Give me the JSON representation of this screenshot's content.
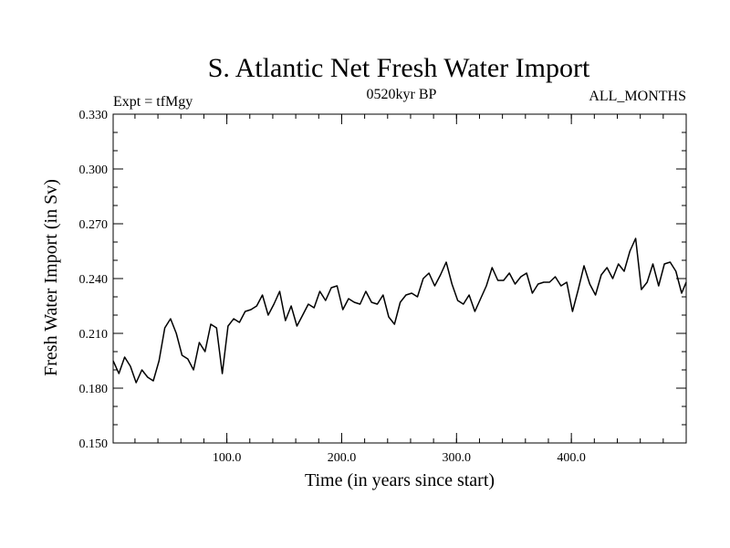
{
  "chart_data": {
    "type": "line",
    "title": "S. Atlantic Net Fresh Water Import",
    "subtitle_left": "Expt = tfMgy",
    "subtitle_center": "0520kyr BP",
    "subtitle_right": "ALL_MONTHS",
    "xlabel": "Time (in years since start)",
    "ylabel": "Fresh Water Import (in Sv)",
    "xlim": [
      1,
      500
    ],
    "ylim": [
      0.15,
      0.33
    ],
    "x_ticks": [
      100,
      200,
      300,
      400
    ],
    "x_tick_labels": [
      "100.0",
      "200.0",
      "300.0",
      "400.0"
    ],
    "y_ticks": [
      0.15,
      0.18,
      0.21,
      0.24,
      0.27,
      0.3,
      0.33
    ],
    "y_tick_labels": [
      "0.150",
      "0.180",
      "0.210",
      "0.240",
      "0.270",
      "0.300",
      "0.330"
    ],
    "series": [
      {
        "name": "Fresh Water Import",
        "color": "#000000",
        "x": [
          1,
          6,
          11,
          16,
          21,
          26,
          31,
          36,
          41,
          46,
          51,
          56,
          61,
          66,
          71,
          76,
          81,
          86,
          91,
          96,
          101,
          106,
          111,
          116,
          121,
          126,
          131,
          136,
          141,
          146,
          151,
          156,
          161,
          166,
          171,
          176,
          181,
          186,
          191,
          196,
          201,
          206,
          211,
          216,
          221,
          226,
          231,
          236,
          241,
          246,
          251,
          256,
          261,
          266,
          271,
          276,
          281,
          286,
          291,
          296,
          301,
          306,
          311,
          316,
          321,
          326,
          331,
          336,
          341,
          346,
          351,
          356,
          361,
          366,
          371,
          376,
          381,
          386,
          391,
          396,
          401,
          406,
          411,
          416,
          421,
          426,
          431,
          436,
          441,
          446,
          451,
          456,
          461,
          466,
          471,
          476,
          481,
          486,
          491,
          496,
          500
        ],
        "values": [
          0.195,
          0.188,
          0.197,
          0.192,
          0.183,
          0.19,
          0.186,
          0.184,
          0.195,
          0.213,
          0.218,
          0.21,
          0.198,
          0.196,
          0.19,
          0.205,
          0.2,
          0.215,
          0.213,
          0.188,
          0.214,
          0.218,
          0.216,
          0.222,
          0.223,
          0.225,
          0.231,
          0.22,
          0.226,
          0.233,
          0.217,
          0.225,
          0.214,
          0.22,
          0.226,
          0.224,
          0.233,
          0.228,
          0.235,
          0.236,
          0.223,
          0.229,
          0.227,
          0.226,
          0.233,
          0.227,
          0.226,
          0.231,
          0.219,
          0.215,
          0.227,
          0.231,
          0.232,
          0.23,
          0.24,
          0.243,
          0.236,
          0.242,
          0.249,
          0.237,
          0.228,
          0.226,
          0.231,
          0.222,
          0.229,
          0.236,
          0.246,
          0.239,
          0.239,
          0.243,
          0.237,
          0.241,
          0.243,
          0.232,
          0.237,
          0.238,
          0.238,
          0.241,
          0.236,
          0.238,
          0.222,
          0.234,
          0.247,
          0.237,
          0.231,
          0.242,
          0.246,
          0.24,
          0.248,
          0.244,
          0.255,
          0.262,
          0.234,
          0.238,
          0.248,
          0.236,
          0.248,
          0.249,
          0.244,
          0.232,
          0.238
        ]
      }
    ]
  }
}
